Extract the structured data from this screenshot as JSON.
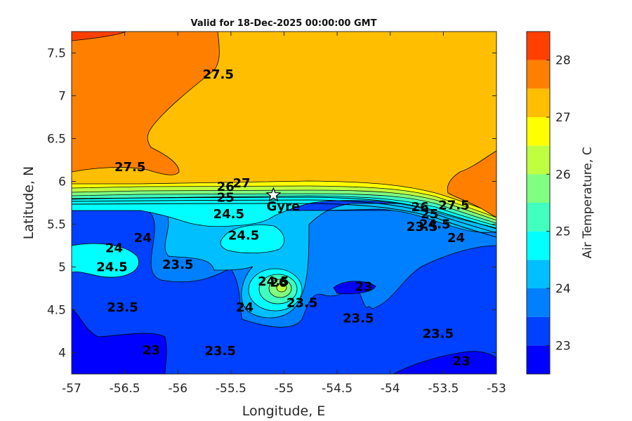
{
  "chart_data": {
    "type": "contourf",
    "title": "Valid for 18-Dec-2025 00:00:00 GMT",
    "xlabel": "Longitude, E",
    "ylabel": "Latitude, N",
    "xlim": [
      -57,
      -53
    ],
    "ylim": [
      3.75,
      7.75
    ],
    "x_ticks": [
      -57,
      -56.5,
      -56,
      -55.5,
      -55,
      -54.5,
      -54,
      -53.5,
      -53
    ],
    "x_tick_labels": [
      "-57",
      "-56.5",
      "-56",
      "-55.5",
      "-55",
      "-54.5",
      "-54",
      "-53.5",
      "-53"
    ],
    "y_ticks": [
      4,
      4.5,
      5,
      5.5,
      6,
      6.5,
      7,
      7.5
    ],
    "y_tick_labels": [
      "4",
      "4.5",
      "5",
      "5.5",
      "6",
      "6.5",
      "7",
      "7.5"
    ],
    "colorbar": {
      "label": "Air Temperature, C",
      "range": [
        22.5,
        28.5
      ],
      "ticks": [
        23,
        24,
        25,
        26,
        27,
        28
      ],
      "tick_labels": [
        "23",
        "24",
        "25",
        "26",
        "27",
        "28"
      ],
      "levels": [
        22.5,
        23,
        23.5,
        24,
        24.5,
        25,
        25.5,
        26,
        26.5,
        27,
        27.5,
        28,
        28.5
      ],
      "colors": [
        "#0000ff",
        "#0040ff",
        "#0080ff",
        "#00bfff",
        "#00ffff",
        "#40ffbf",
        "#80ff80",
        "#bfff40",
        "#ffff00",
        "#ffbf00",
        "#ff8000",
        "#ff4000"
      ]
    },
    "contour_labels": [
      {
        "text": "27.5",
        "lon": -55.62,
        "lat": 7.25
      },
      {
        "text": "27.5",
        "lon": -56.45,
        "lat": 6.17
      },
      {
        "text": "27",
        "lon": -55.4,
        "lat": 5.98
      },
      {
        "text": "26",
        "lon": -55.55,
        "lat": 5.94
      },
      {
        "text": "25",
        "lon": -55.55,
        "lat": 5.81
      },
      {
        "text": "24.5",
        "lon": -55.52,
        "lat": 5.62
      },
      {
        "text": "24.5",
        "lon": -55.38,
        "lat": 5.37
      },
      {
        "text": "24",
        "lon": -56.33,
        "lat": 5.34
      },
      {
        "text": "24",
        "lon": -56.6,
        "lat": 5.22
      },
      {
        "text": "24.5",
        "lon": -56.62,
        "lat": 5.0
      },
      {
        "text": "23.5",
        "lon": -56.0,
        "lat": 5.03
      },
      {
        "text": "24.5",
        "lon": -55.1,
        "lat": 4.83
      },
      {
        "text": "26",
        "lon": -55.05,
        "lat": 4.82
      },
      {
        "text": "24",
        "lon": -55.37,
        "lat": 4.53
      },
      {
        "text": "23.5",
        "lon": -54.83,
        "lat": 4.58
      },
      {
        "text": "23",
        "lon": -54.25,
        "lat": 4.77
      },
      {
        "text": "23.5",
        "lon": -56.52,
        "lat": 4.53
      },
      {
        "text": "23.5",
        "lon": -54.3,
        "lat": 4.4
      },
      {
        "text": "23.5",
        "lon": -55.6,
        "lat": 4.02
      },
      {
        "text": "23",
        "lon": -56.25,
        "lat": 4.03
      },
      {
        "text": "23.5",
        "lon": -53.55,
        "lat": 4.22
      },
      {
        "text": "23",
        "lon": -53.33,
        "lat": 3.9
      },
      {
        "text": "27.5",
        "lon": -53.4,
        "lat": 5.72
      },
      {
        "text": "26",
        "lon": -53.72,
        "lat": 5.7
      },
      {
        "text": "25",
        "lon": -53.63,
        "lat": 5.62
      },
      {
        "text": "23.5",
        "lon": -53.7,
        "lat": 5.47
      },
      {
        "text": "24.5",
        "lon": -53.58,
        "lat": 5.5
      },
      {
        "text": "24",
        "lon": -53.38,
        "lat": 5.34
      }
    ],
    "markers": [
      {
        "name": "Gyre",
        "lon": -55.1,
        "lat": 5.84,
        "symbol": "star"
      }
    ],
    "regions": [
      {
        "level_range": [
          27,
          27.5
        ],
        "note": "bulk of northern half",
        "color": "#ffbf00"
      },
      {
        "level_range": [
          27.5,
          28
        ],
        "note": "northwest and east offshore",
        "color": "#ff8000"
      },
      {
        "level_range": [
          23,
          23.5
        ],
        "note": "southern interior",
        "color": "#0040ff"
      },
      {
        "level_range": [
          22.5,
          23
        ],
        "note": "small pockets near south edge",
        "color": "#0000ff"
      },
      {
        "level_range": [
          24.5,
          25
        ],
        "note": "coastal band and west cells",
        "color": "#00ffff"
      },
      {
        "level_range": [
          26,
          26.5
        ],
        "note": "warm peak near (-55.05, 4.75)",
        "color": "#bfff40"
      }
    ]
  }
}
